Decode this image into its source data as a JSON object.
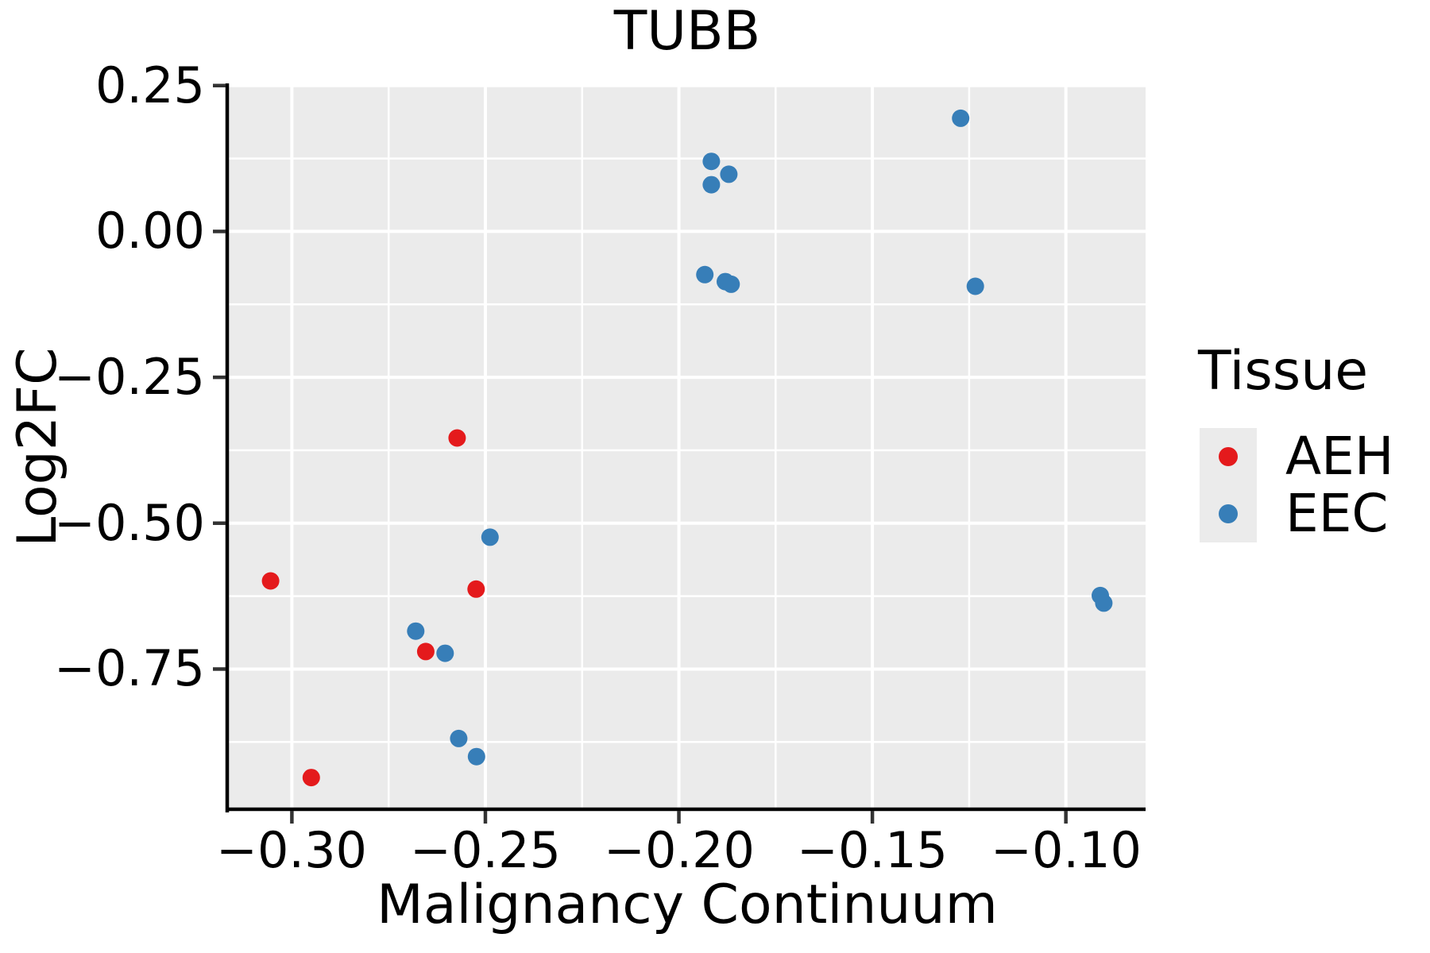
{
  "title": "TUBB",
  "colors": {
    "aeh": "#E41A1C",
    "eec": "#377EB8",
    "panel_background": "#EBEBEB",
    "gridline": "#FFFFFF",
    "axis_line": "#000000",
    "tick_mark": "#333333",
    "text": "#000000",
    "legend_key_background": "#EBEBEB"
  },
  "legend": {
    "title": "Tissue",
    "items": [
      {
        "label": "AEH",
        "color": "#E41A1C"
      },
      {
        "label": "EEC",
        "color": "#377EB8"
      }
    ]
  },
  "chart_data": {
    "type": "scatter",
    "title": "TUBB",
    "xlabel": "Malignancy Continuum",
    "ylabel": "Log2FC",
    "xlim": [
      -0.3163,
      -0.0794
    ],
    "ylim": [
      -0.993,
      0.251
    ],
    "x_ticks": [
      -0.3,
      -0.25,
      -0.2,
      -0.15,
      -0.1
    ],
    "x_tick_labels": [
      "−0.30",
      "−0.25",
      "−0.20",
      "−0.15",
      "−0.10"
    ],
    "y_ticks": [
      0.25,
      0.0,
      -0.25,
      -0.5,
      -0.75
    ],
    "y_tick_labels": [
      "0.25",
      "0.00",
      "−0.25",
      "−0.50",
      "−0.75"
    ],
    "x_minor_ticks": [
      -0.275,
      -0.225,
      -0.175,
      -0.125
    ],
    "y_minor_ticks": [
      0.125,
      -0.125,
      -0.375,
      -0.625,
      -0.875
    ],
    "grid": true,
    "legend_position": "right",
    "marker_radius": 11,
    "series": [
      {
        "name": "AEH",
        "color": "#E41A1C",
        "points": [
          [
            -0.3055,
            -0.599
          ],
          [
            -0.295,
            -0.936
          ],
          [
            -0.2654,
            -0.72
          ],
          [
            -0.2573,
            -0.354
          ],
          [
            -0.2524,
            -0.613
          ]
        ]
      },
      {
        "name": "EEC",
        "color": "#377EB8",
        "points": [
          [
            -0.268,
            -0.685
          ],
          [
            -0.2604,
            -0.723
          ],
          [
            -0.2569,
            -0.869
          ],
          [
            -0.2523,
            -0.9
          ],
          [
            -0.2488,
            -0.524
          ],
          [
            -0.1933,
            -0.074
          ],
          [
            -0.1916,
            0.12
          ],
          [
            -0.1916,
            0.08
          ],
          [
            -0.188,
            -0.086
          ],
          [
            -0.1871,
            0.098
          ],
          [
            -0.1865,
            -0.0905
          ],
          [
            -0.1272,
            0.194
          ],
          [
            -0.1234,
            -0.094
          ],
          [
            -0.0911,
            -0.624
          ],
          [
            -0.0902,
            -0.637
          ]
        ]
      }
    ]
  }
}
